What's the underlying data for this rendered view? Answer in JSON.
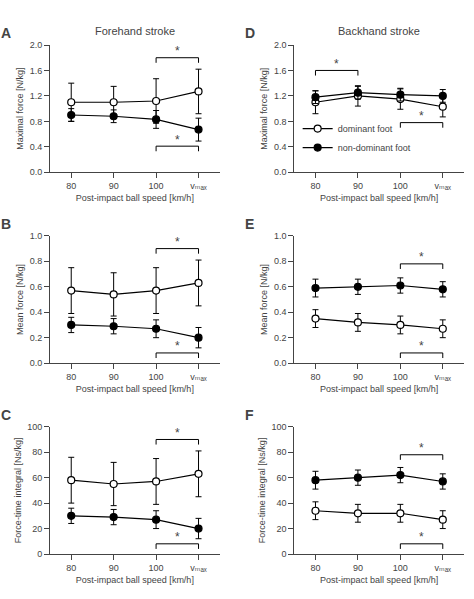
{
  "chart_data": [
    {
      "type": "line",
      "panel_label": "A",
      "title": "Forehand stroke",
      "x_label": "Post-impact ball speed [km/h]",
      "y_label": "Maximal force [N/kg]",
      "categories": [
        "80",
        "90",
        "100",
        "vₘₐₓ"
      ],
      "series": [
        {
          "name": "dominant foot",
          "color": "black",
          "marker": "circle-open",
          "values": [
            1.1,
            1.1,
            1.12,
            1.27
          ],
          "errors": [
            0.3,
            0.25,
            0.35,
            0.35
          ]
        },
        {
          "name": "non-dominant foot",
          "color": "black",
          "marker": "circle",
          "values": [
            0.9,
            0.88,
            0.83,
            0.67
          ],
          "errors": [
            0.1,
            0.1,
            0.14,
            0.18
          ]
        }
      ],
      "ylim": [
        0,
        2.0
      ],
      "yticks": [
        {
          "value": 0,
          "label": "0.0"
        },
        {
          "value": 0.4,
          "label": "0.4"
        },
        {
          "value": 0.8,
          "label": "0.8"
        },
        {
          "value": 1.2,
          "label": "1.2"
        },
        {
          "value": 1.6,
          "label": "1.6"
        },
        {
          "value": 2.0,
          "label": "2.0"
        }
      ],
      "grid": false,
      "annotations": [
        {
          "text": "*",
          "x": [
            2,
            3
          ],
          "y": 1.72
        },
        {
          "text": "*",
          "x": [
            2,
            3
          ],
          "y": 0.33
        }
      ]
    },
    {
      "type": "line",
      "panel_label": "B",
      "x_label": "Post-impact ball speed [km/h]",
      "y_label": "Mean force [N/kg]",
      "categories": [
        "80",
        "90",
        "100",
        "vₘₐₓ"
      ],
      "series": [
        {
          "name": "dominant foot",
          "color": "black",
          "marker": "circle-open",
          "values": [
            0.57,
            0.54,
            0.57,
            0.63
          ],
          "errors": [
            0.18,
            0.17,
            0.18,
            0.18
          ]
        },
        {
          "name": "non-dominant foot",
          "color": "black",
          "marker": "circle",
          "values": [
            0.3,
            0.29,
            0.27,
            0.2
          ],
          "errors": [
            0.06,
            0.06,
            0.07,
            0.08
          ]
        }
      ],
      "ylim": [
        0,
        1.0
      ],
      "yticks": [
        {
          "value": 0,
          "label": "0.0"
        },
        {
          "value": 0.2,
          "label": "0.2"
        },
        {
          "value": 0.4,
          "label": "0.4"
        },
        {
          "value": 0.6,
          "label": "0.6"
        },
        {
          "value": 0.8,
          "label": "0.8"
        },
        {
          "value": 1.0,
          "label": "1.0"
        }
      ],
      "grid": false,
      "annotations": [
        {
          "text": "*",
          "x": [
            2,
            3
          ],
          "y": 0.86
        },
        {
          "text": "*",
          "x": [
            2,
            3
          ],
          "y": 0.04
        }
      ]
    },
    {
      "type": "line",
      "panel_label": "C",
      "x_label": "Post-impact ball speed [km/h]",
      "y_label": "Force-time integral [Ns/kg]",
      "categories": [
        "80",
        "90",
        "100",
        "vₘₐₓ"
      ],
      "series": [
        {
          "name": "dominant foot",
          "color": "black",
          "marker": "circle-open",
          "values": [
            58,
            55,
            57,
            63
          ],
          "errors": [
            18,
            17,
            18,
            18
          ]
        },
        {
          "name": "non-dominant foot",
          "color": "black",
          "marker": "circle",
          "values": [
            30,
            29,
            27,
            20
          ],
          "errors": [
            6,
            6,
            7,
            8
          ]
        }
      ],
      "ylim": [
        0,
        100
      ],
      "yticks": [
        0,
        20,
        40,
        60,
        80,
        100
      ],
      "grid": false,
      "annotations": [
        {
          "text": "*",
          "x": [
            2,
            3
          ],
          "y": 86
        },
        {
          "text": "*",
          "x": [
            2,
            3
          ],
          "y": 4
        }
      ]
    },
    {
      "type": "line",
      "panel_label": "D",
      "title": "Backhand stroke",
      "x_label": "Post-impact ball speed [km/h]",
      "y_label": "Maximal force [N/kg]",
      "categories": [
        "80",
        "90",
        "100",
        "vₘₐₓ"
      ],
      "series": [
        {
          "name": "dominant foot",
          "color": "black",
          "marker": "circle-open",
          "values": [
            1.1,
            1.2,
            1.15,
            1.03
          ],
          "errors": [
            0.18,
            0.16,
            0.16,
            0.16
          ]
        },
        {
          "name": "non-dominant foot",
          "color": "black",
          "marker": "circle",
          "values": [
            1.18,
            1.25,
            1.22,
            1.2
          ],
          "errors": [
            0.1,
            0.1,
            0.1,
            0.1
          ]
        }
      ],
      "ylim": [
        0,
        2.0
      ],
      "yticks": [
        {
          "value": 0,
          "label": "0.0"
        },
        {
          "value": 0.4,
          "label": "0.4"
        },
        {
          "value": 0.8,
          "label": "0.8"
        },
        {
          "value": 1.2,
          "label": "1.2"
        },
        {
          "value": 1.6,
          "label": "1.6"
        },
        {
          "value": 2.0,
          "label": "2.0"
        }
      ],
      "grid": false,
      "legend": "lower left",
      "annotations": [
        {
          "text": "*",
          "x": [
            0,
            1
          ],
          "y": 1.52
        },
        {
          "text": "*",
          "x": [
            2,
            3
          ],
          "y": 0.7
        }
      ]
    },
    {
      "type": "line",
      "panel_label": "E",
      "x_label": "Post-impact ball speed [km/h]",
      "y_label": "Mean force [N/kg]",
      "categories": [
        "80",
        "90",
        "100",
        "vₘₐₓ"
      ],
      "series": [
        {
          "name": "dominant foot",
          "color": "black",
          "marker": "circle-open",
          "values": [
            0.35,
            0.32,
            0.3,
            0.27
          ],
          "errors": [
            0.07,
            0.07,
            0.07,
            0.07
          ]
        },
        {
          "name": "non-dominant foot",
          "color": "black",
          "marker": "circle",
          "values": [
            0.59,
            0.6,
            0.61,
            0.58
          ],
          "errors": [
            0.07,
            0.06,
            0.06,
            0.06
          ]
        }
      ],
      "ylim": [
        0,
        1.0
      ],
      "yticks": [
        {
          "value": 0,
          "label": "0.0"
        },
        {
          "value": 0.2,
          "label": "0.2"
        },
        {
          "value": 0.4,
          "label": "0.4"
        },
        {
          "value": 0.6,
          "label": "0.6"
        },
        {
          "value": 0.8,
          "label": "0.8"
        },
        {
          "value": 1.0,
          "label": "1.0"
        }
      ],
      "grid": false,
      "annotations": [
        {
          "text": "*",
          "x": [
            2,
            3
          ],
          "y": 0.74
        },
        {
          "text": "*",
          "x": [
            2,
            3
          ],
          "y": 0.04
        }
      ]
    },
    {
      "type": "line",
      "panel_label": "F",
      "x_label": "Post-impact ball speed [km/h]",
      "y_label": "Force-time integral [Ns/kg]",
      "categories": [
        "80",
        "90",
        "100",
        "vₘₐₓ"
      ],
      "series": [
        {
          "name": "dominant foot",
          "color": "black",
          "marker": "circle-open",
          "values": [
            34,
            32,
            32,
            27
          ],
          "errors": [
            7,
            7,
            7,
            7
          ]
        },
        {
          "name": "non-dominant foot",
          "color": "black",
          "marker": "circle",
          "values": [
            58,
            60,
            62,
            57
          ],
          "errors": [
            7,
            6,
            6,
            6
          ]
        }
      ],
      "ylim": [
        0,
        100
      ],
      "yticks": [
        0,
        20,
        40,
        60,
        80,
        100
      ],
      "grid": false,
      "annotations": [
        {
          "text": "*",
          "x": [
            2,
            3
          ],
          "y": 74
        },
        {
          "text": "*",
          "x": [
            2,
            3
          ],
          "y": 4
        }
      ]
    }
  ]
}
